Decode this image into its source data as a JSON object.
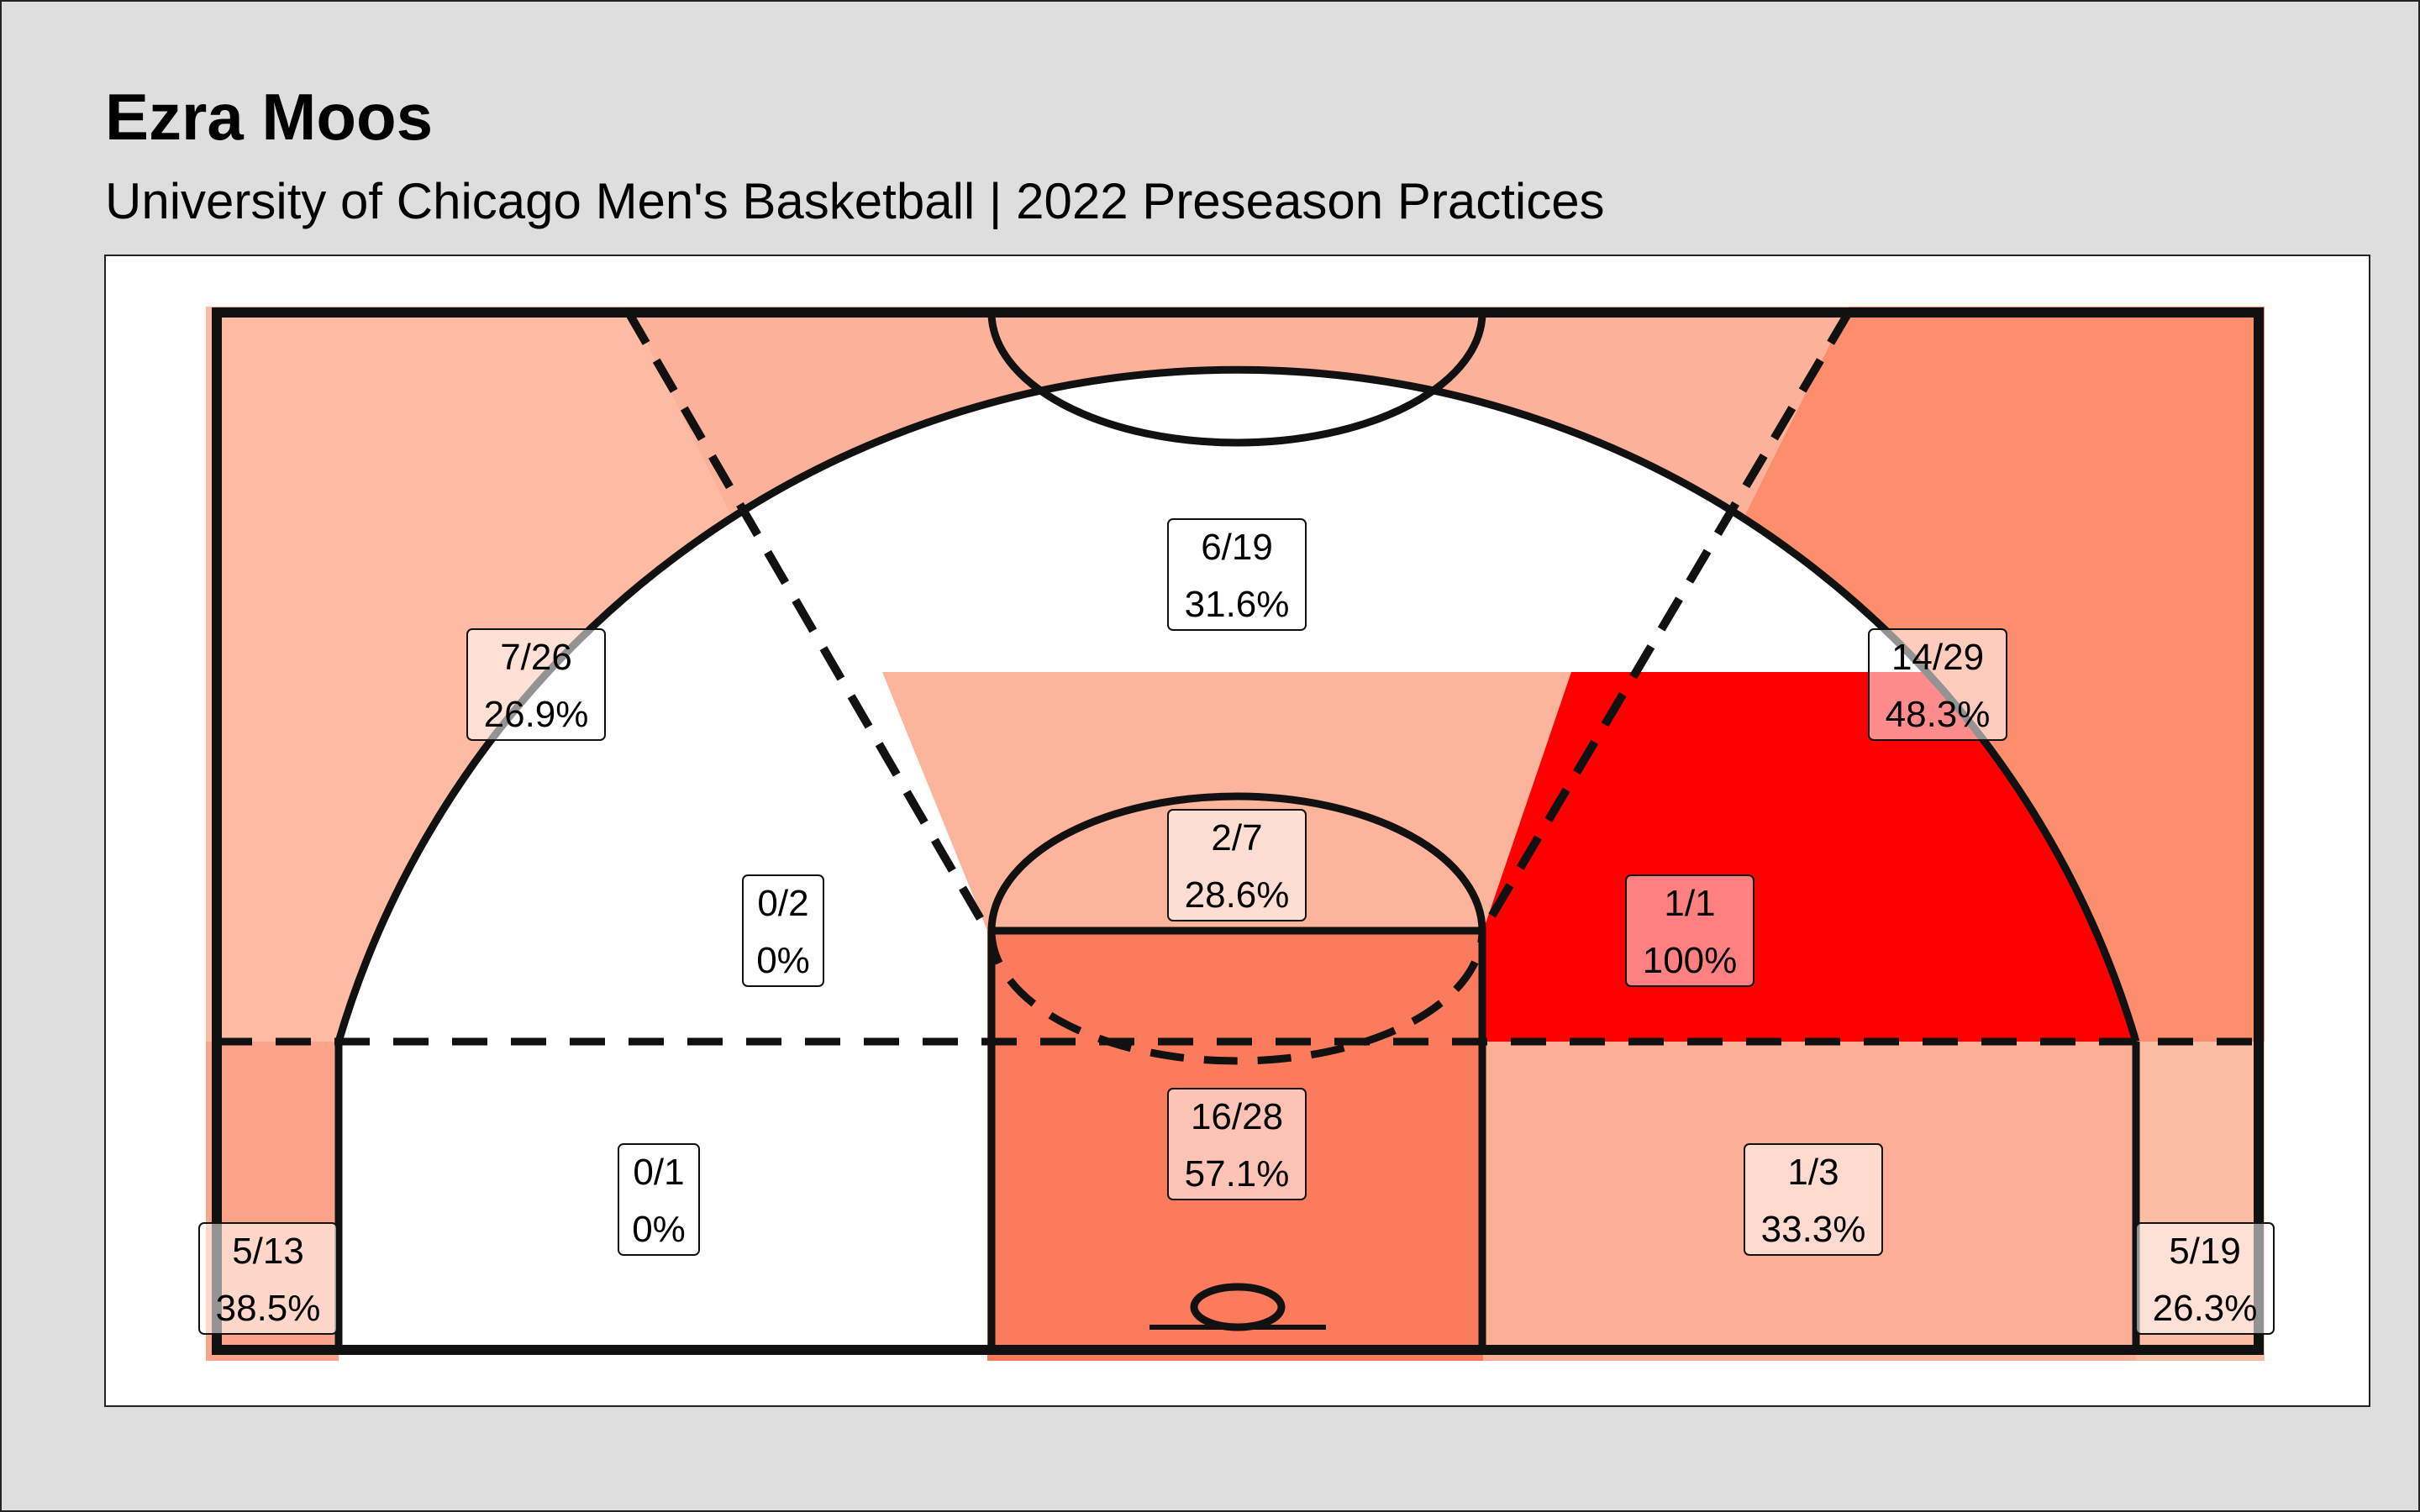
{
  "title": "Ezra Moos",
  "subtitle": "University of Chicago Men's Basketball | 2022 Preseason Practices",
  "chart_data": {
    "type": "heatmap",
    "description_type": "shot-chart",
    "colors": {
      "background": "#dedede",
      "panel": "#ffffff",
      "court_lines": "#111111"
    },
    "zones": [
      {
        "id": "left-wing-three",
        "made": 7,
        "attempts": 26,
        "label": "7/26",
        "pct": "26.9%",
        "color": "#fcbba2"
      },
      {
        "id": "top-key-three",
        "made": 6,
        "attempts": 19,
        "label": "6/19",
        "pct": "31.6%",
        "color": "#fcb19a"
      },
      {
        "id": "right-wing-three",
        "made": 14,
        "attempts": 29,
        "label": "14/29",
        "pct": "48.3%",
        "color": "#fc8e6e"
      },
      {
        "id": "left-elbow-mid",
        "made": 0,
        "attempts": 2,
        "label": "0/2",
        "pct": "0%",
        "color": "#ffffff"
      },
      {
        "id": "top-key-mid",
        "made": 2,
        "attempts": 7,
        "label": "2/7",
        "pct": "28.6%",
        "color": "#fcb49c"
      },
      {
        "id": "right-elbow-mid",
        "made": 1,
        "attempts": 1,
        "label": "1/1",
        "pct": "100%",
        "color": "#ff0000"
      },
      {
        "id": "left-baseline-mid",
        "made": 0,
        "attempts": 1,
        "label": "0/1",
        "pct": "0%",
        "color": "#ffffff"
      },
      {
        "id": "paint",
        "made": 16,
        "attempts": 28,
        "label": "16/28",
        "pct": "57.1%",
        "color": "#fb7b5c"
      },
      {
        "id": "right-baseline-mid",
        "made": 1,
        "attempts": 3,
        "label": "1/3",
        "pct": "33.3%",
        "color": "#fcae96"
      },
      {
        "id": "left-corner-three",
        "made": 5,
        "attempts": 13,
        "label": "5/13",
        "pct": "38.5%",
        "color": "#fca48b"
      },
      {
        "id": "right-corner-three",
        "made": 5,
        "attempts": 19,
        "label": "5/19",
        "pct": "26.3%",
        "color": "#fcbda5"
      }
    ]
  }
}
